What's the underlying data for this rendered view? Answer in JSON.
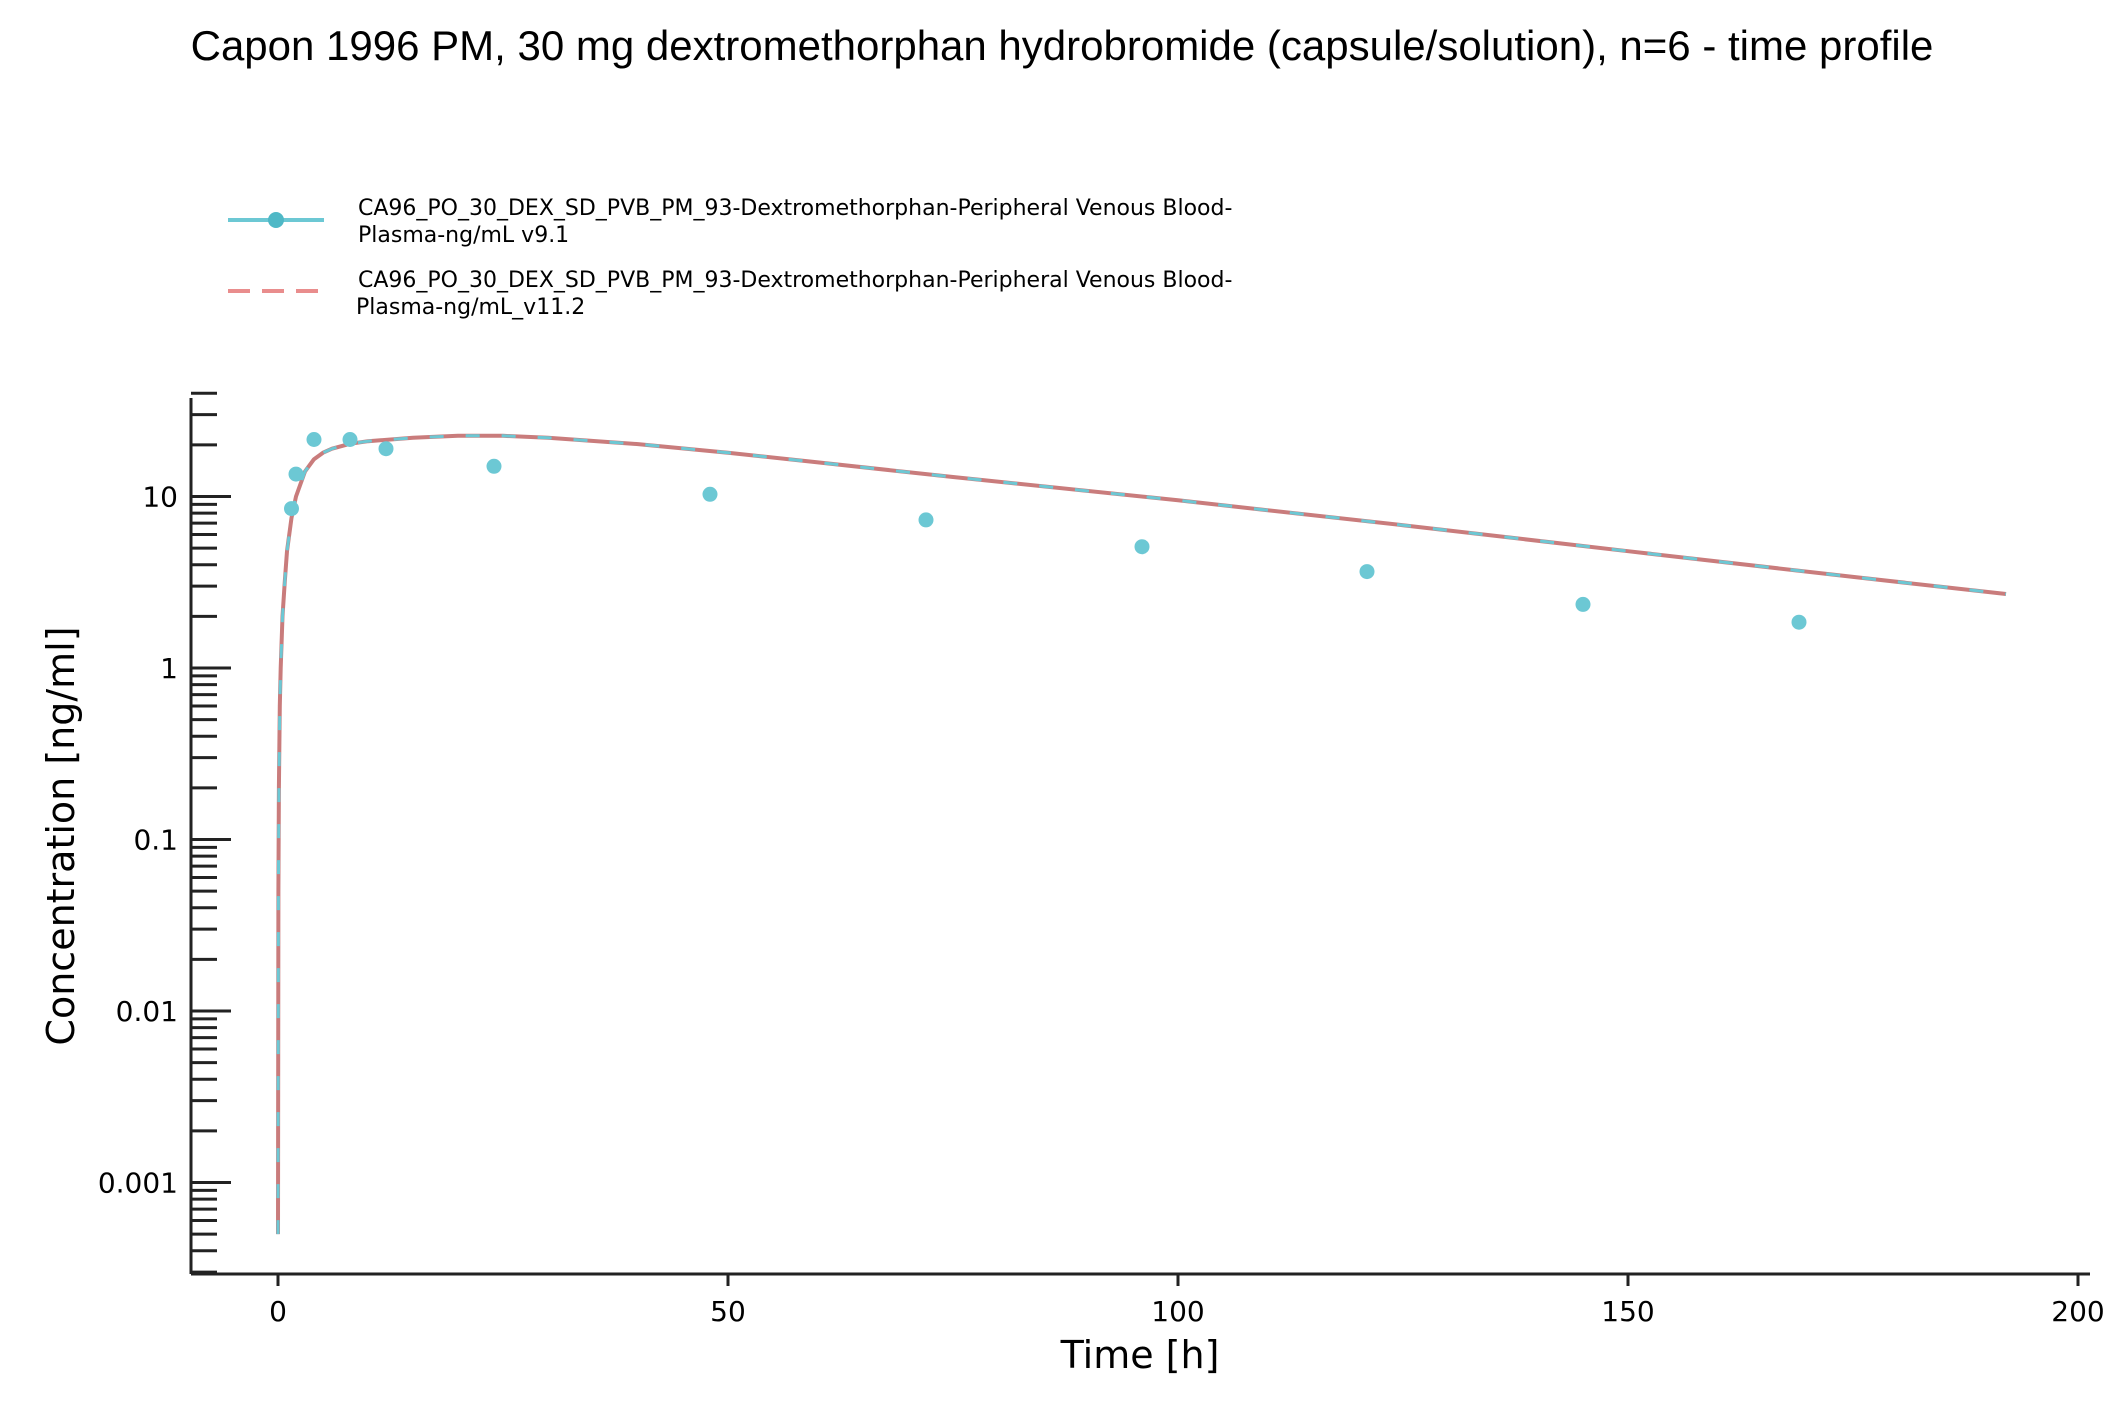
{
  "chart_data": {
    "type": "line",
    "title": "Capon 1996 PM, 30 mg dextromethorphan hydrobromide (capsule/solution), n=6 - time profile",
    "xlabel": "Time [h]",
    "ylabel": "Concentration [ng/ml]",
    "xlim": [
      -10,
      200
    ],
    "ylim": [
      0.00025,
      40
    ],
    "yscale": "log",
    "x_ticks": [
      0,
      50,
      100,
      150,
      200
    ],
    "y_ticks": [
      0.001,
      0.01,
      0.1,
      1,
      10
    ],
    "y_tick_labels": [
      "0.001",
      "0.01",
      "0.1",
      "1",
      "10"
    ],
    "grid": false,
    "legend_position": "top-left",
    "colors": {
      "v9_1": "#6cc8d4",
      "v11_2": "#e07e7e",
      "simulated_line": "#c97c7c",
      "axis": "#222222"
    },
    "series": [
      {
        "name": "CA96_PO_30_DEX_SD_PVB_PM_93-Dextromethorphan-Peripheral Venous Blood-Plasma-ng/mL v9.1",
        "legend_lines": [
          "CA96_PO_30_DEX_SD_PVB_PM_93-Dextromethorphan-Peripheral Venous Blood-",
          "Plasma-ng/mL v9.1"
        ],
        "style": "solid-with-markers",
        "observed_points": [
          {
            "x": 1.5,
            "y": 8.5
          },
          {
            "x": 2,
            "y": 13.5
          },
          {
            "x": 4,
            "y": 21.5
          },
          {
            "x": 8,
            "y": 21.5
          },
          {
            "x": 12,
            "y": 19
          },
          {
            "x": 24,
            "y": 15
          },
          {
            "x": 48,
            "y": 10.3
          },
          {
            "x": 72,
            "y": 7.3
          },
          {
            "x": 96,
            "y": 5.1
          },
          {
            "x": 121,
            "y": 3.65
          },
          {
            "x": 145,
            "y": 2.35
          },
          {
            "x": 169,
            "y": 1.85
          }
        ],
        "simulated": [
          {
            "x": 0,
            "y": 0.0005
          },
          {
            "x": 0.05,
            "y": 0.05
          },
          {
            "x": 0.1,
            "y": 0.2
          },
          {
            "x": 0.2,
            "y": 0.6
          },
          {
            "x": 0.3,
            "y": 1.0
          },
          {
            "x": 0.5,
            "y": 2.0
          },
          {
            "x": 0.75,
            "y": 3.2
          },
          {
            "x": 1,
            "y": 4.8
          },
          {
            "x": 1.5,
            "y": 7.5
          },
          {
            "x": 2,
            "y": 10
          },
          {
            "x": 3,
            "y": 14
          },
          {
            "x": 4,
            "y": 16.5
          },
          {
            "x": 5,
            "y": 18
          },
          {
            "x": 6,
            "y": 19
          },
          {
            "x": 8,
            "y": 20.3
          },
          {
            "x": 10,
            "y": 21
          },
          {
            "x": 15,
            "y": 22
          },
          {
            "x": 20,
            "y": 22.6
          },
          {
            "x": 25,
            "y": 22.6
          },
          {
            "x": 30,
            "y": 22
          },
          {
            "x": 40,
            "y": 20.2
          },
          {
            "x": 50,
            "y": 18
          },
          {
            "x": 60,
            "y": 15.8
          },
          {
            "x": 75,
            "y": 13
          },
          {
            "x": 100,
            "y": 9.5
          },
          {
            "x": 125,
            "y": 6.8
          },
          {
            "x": 150,
            "y": 4.8
          },
          {
            "x": 175,
            "y": 3.4
          },
          {
            "x": 192,
            "y": 2.7
          }
        ]
      },
      {
        "name": "CA96_PO_30_DEX_SD_PVB_PM_93-Dextromethorphan-Peripheral Venous Blood-Plasma-ng/mL_v11.2",
        "legend_lines": [
          "CA96_PO_30_DEX_SD_PVB_PM_93-Dextromethorphan-Peripheral Venous Blood-",
          "Plasma-ng/mL_v11.2"
        ],
        "style": "dashed"
      }
    ]
  }
}
